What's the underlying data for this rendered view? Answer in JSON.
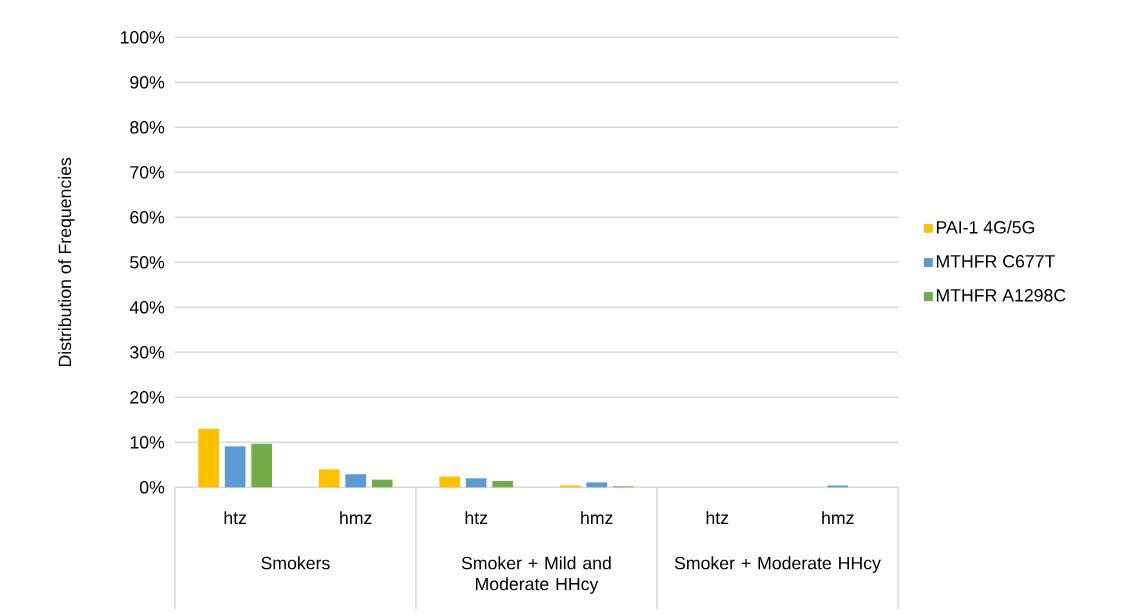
{
  "chart_data": {
    "type": "bar",
    "ylabel": "Distribution of Frequencies",
    "categories": [
      "htz",
      "hmz",
      "htz",
      "hmz",
      "htz",
      "hmz"
    ],
    "annotations": [
      "Smokers",
      "Smoker + Mild and Moderate HHcy",
      "Smoker + Moderate HHcy"
    ],
    "series": [
      {
        "name": "PAI-1 4G/5G",
        "color": "#ffc000",
        "values": [
          13,
          4.0,
          2.4,
          0.4,
          0,
          0
        ]
      },
      {
        "name": "MTHFR C677T",
        "color": "#5b9bd5",
        "values": [
          9.1,
          2.9,
          2.0,
          1.1,
          0,
          0.4
        ]
      },
      {
        "name": "MTHFR A1298C",
        "color": "#70ad47",
        "values": [
          9.7,
          1.7,
          1.4,
          0.2,
          0,
          0
        ]
      }
    ],
    "ylim": [
      0,
      100
    ],
    "yticks": [
      {
        "value": 0,
        "label": "0%"
      },
      {
        "value": 10,
        "label": "10%"
      },
      {
        "value": 20,
        "label": "20%"
      },
      {
        "value": 30,
        "label": "30%"
      },
      {
        "value": 40,
        "label": "40%"
      },
      {
        "value": 50,
        "label": "50%"
      },
      {
        "value": 60,
        "label": "60%"
      },
      {
        "value": 70,
        "label": "70%"
      },
      {
        "value": 80,
        "label": "80%"
      },
      {
        "value": 90,
        "label": "90%"
      },
      {
        "value": 100,
        "label": "100%"
      }
    ],
    "grid": "y",
    "legend": "right"
  }
}
